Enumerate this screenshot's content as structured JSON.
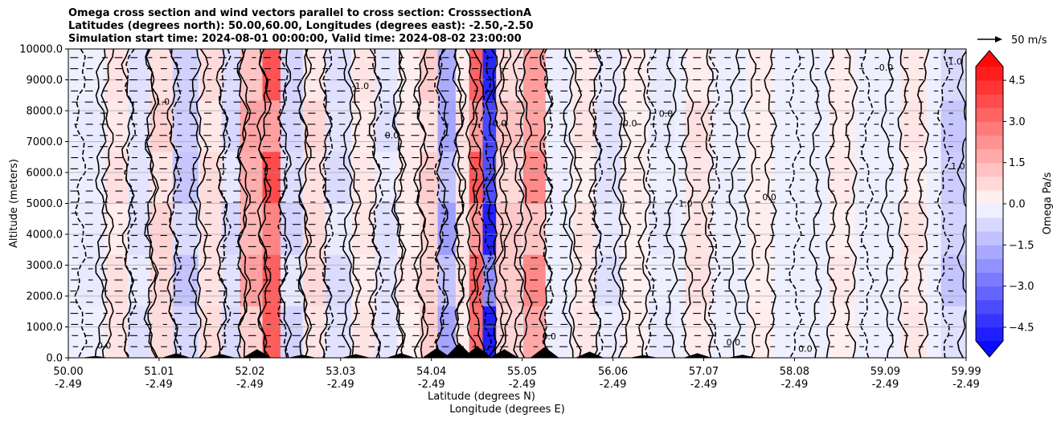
{
  "chart_data": {
    "type": "heatmap",
    "title_lines": [
      "Omega cross section and wind vectors parallel to cross section: CrosssectionA",
      "Latitudes (degrees north): 50.00,60.00, Longitudes (degrees east): -2.50,-2.50",
      "Simulation start time: 2024-08-01 00:00:00, Valid time: 2024-08-02 23:00:00"
    ],
    "ylabel": "Altitude (meters)",
    "xlabel_lines": [
      "Latitude (degrees N)",
      "Longitude (degrees E)"
    ],
    "xlim": [
      50.0,
      59.99
    ],
    "ylim": [
      0,
      10000
    ],
    "x_ticks": [
      {
        "lat": "50.00",
        "lon": "-2.49",
        "value": 50.0
      },
      {
        "lat": "51.01",
        "lon": "-2.49",
        "value": 51.01
      },
      {
        "lat": "52.02",
        "lon": "-2.49",
        "value": 52.02
      },
      {
        "lat": "53.03",
        "lon": "-2.49",
        "value": 53.03
      },
      {
        "lat": "54.04",
        "lon": "-2.49",
        "value": 54.04
      },
      {
        "lat": "55.05",
        "lon": "-2.49",
        "value": 55.05
      },
      {
        "lat": "56.06",
        "lon": "-2.49",
        "value": 56.06
      },
      {
        "lat": "57.07",
        "lon": "-2.49",
        "value": 57.07
      },
      {
        "lat": "58.08",
        "lon": "-2.49",
        "value": 58.08
      },
      {
        "lat": "59.09",
        "lon": "-2.49",
        "value": 59.09
      },
      {
        "lat": "59.99",
        "lon": "-2.49",
        "value": 59.99
      }
    ],
    "y_ticks": [
      {
        "label": "0.0",
        "value": 0
      },
      {
        "label": "1000.0",
        "value": 1000
      },
      {
        "label": "2000.0",
        "value": 2000
      },
      {
        "label": "3000.0",
        "value": 3000
      },
      {
        "label": "4000.0",
        "value": 4000
      },
      {
        "label": "5000.0",
        "value": 5000
      },
      {
        "label": "6000.0",
        "value": 6000
      },
      {
        "label": "7000.0",
        "value": 7000
      },
      {
        "label": "8000.0",
        "value": 8000
      },
      {
        "label": "9000.0",
        "value": 9000
      },
      {
        "label": "10000.0",
        "value": 10000
      }
    ],
    "grid": true,
    "colorbar": {
      "label": "Omega Pa/s",
      "min": -5.0,
      "max": 5.0,
      "extend": "both",
      "ticks": [
        {
          "label": "4.5",
          "value": 4.5
        },
        {
          "label": "3.0",
          "value": 3.0
        },
        {
          "label": "1.5",
          "value": 1.5
        },
        {
          "label": "0.0",
          "value": 0.0
        },
        {
          "label": "−1.5",
          "value": -1.5
        },
        {
          "label": "−3.0",
          "value": -3.0
        },
        {
          "label": "−4.5",
          "value": -4.5
        }
      ]
    },
    "vector_key": {
      "label": "50 m/s",
      "speed": 50
    },
    "omega_bands": [
      {
        "lat": 50.25,
        "peak": -0.4
      },
      {
        "lat": 50.55,
        "peak": 0.6
      },
      {
        "lat": 50.8,
        "peak": -0.6
      },
      {
        "lat": 51.05,
        "peak": 0.9
      },
      {
        "lat": 51.3,
        "peak": -1.2
      },
      {
        "lat": 51.6,
        "peak": 0.7
      },
      {
        "lat": 51.85,
        "peak": -0.8
      },
      {
        "lat": 52.05,
        "peak": 2.0
      },
      {
        "lat": 52.3,
        "peak": 3.8
      },
      {
        "lat": 52.5,
        "peak": -0.9
      },
      {
        "lat": 52.75,
        "peak": 0.8
      },
      {
        "lat": 53.0,
        "peak": -0.7
      },
      {
        "lat": 53.3,
        "peak": 0.5
      },
      {
        "lat": 53.55,
        "peak": -0.6
      },
      {
        "lat": 53.8,
        "peak": 0.4
      },
      {
        "lat": 54.05,
        "peak": 1.0
      },
      {
        "lat": 54.25,
        "peak": -2.0
      },
      {
        "lat": 54.45,
        "peak": 0.6
      },
      {
        "lat": 54.6,
        "peak": 3.5
      },
      {
        "lat": 54.75,
        "peak": -4.8
      },
      {
        "lat": 54.9,
        "peak": 1.2
      },
      {
        "lat": 55.2,
        "peak": 2.5
      },
      {
        "lat": 55.45,
        "peak": -0.3
      },
      {
        "lat": 55.75,
        "peak": 0.5
      },
      {
        "lat": 56.0,
        "peak": -0.6
      },
      {
        "lat": 56.3,
        "peak": 0.3
      },
      {
        "lat": 56.6,
        "peak": -0.4
      },
      {
        "lat": 57.0,
        "peak": 0.6
      },
      {
        "lat": 57.3,
        "peak": -0.3
      },
      {
        "lat": 57.7,
        "peak": 0.3
      },
      {
        "lat": 58.2,
        "peak": -0.2
      },
      {
        "lat": 58.6,
        "peak": 0.4
      },
      {
        "lat": 59.0,
        "peak": -0.2
      },
      {
        "lat": 59.4,
        "peak": 0.5
      },
      {
        "lat": 59.85,
        "peak": -1.2
      }
    ],
    "terrain": [
      {
        "lat": 50.3,
        "height": 60
      },
      {
        "lat": 51.2,
        "height": 150
      },
      {
        "lat": 51.7,
        "height": 120
      },
      {
        "lat": 52.1,
        "height": 280
      },
      {
        "lat": 52.6,
        "height": 100
      },
      {
        "lat": 53.2,
        "height": 120
      },
      {
        "lat": 53.7,
        "height": 150
      },
      {
        "lat": 54.1,
        "height": 320
      },
      {
        "lat": 54.35,
        "height": 480
      },
      {
        "lat": 54.55,
        "height": 380
      },
      {
        "lat": 54.85,
        "height": 280
      },
      {
        "lat": 55.3,
        "height": 350
      },
      {
        "lat": 55.8,
        "height": 200
      },
      {
        "lat": 56.4,
        "height": 90
      },
      {
        "lat": 57.0,
        "height": 150
      },
      {
        "lat": 57.5,
        "height": 100
      }
    ],
    "contour_labels": [
      {
        "text": "0.0",
        "lat": 55.85,
        "alt": 9900
      },
      {
        "text": "0.0",
        "lat": 56.25,
        "alt": 7500
      },
      {
        "text": "-1.0",
        "lat": 56.85,
        "alt": 4900
      },
      {
        "text": "0.0",
        "lat": 55.35,
        "alt": 600
      },
      {
        "text": "-1.0",
        "lat": 53.25,
        "alt": 8700
      },
      {
        "text": "0.0",
        "lat": 53.6,
        "alt": 7100
      },
      {
        "text": "0.0",
        "lat": 50.4,
        "alt": 300
      },
      {
        "text": "0.0",
        "lat": 58.2,
        "alt": 200
      },
      {
        "text": "0.0",
        "lat": 59.1,
        "alt": 9300
      },
      {
        "text": "-1.0",
        "lat": 59.85,
        "alt": 9500
      },
      {
        "text": "0.0",
        "lat": 57.8,
        "alt": 5100
      },
      {
        "text": "0.0",
        "lat": 57.4,
        "alt": 400
      },
      {
        "text": "1.0",
        "lat": 59.9,
        "alt": 6100
      },
      {
        "text": "0.0",
        "lat": 56.65,
        "alt": 7800
      },
      {
        "text": "1.0",
        "lat": 51.05,
        "alt": 8200
      },
      {
        "text": "0.0",
        "lat": 54.8,
        "alt": 7500
      }
    ]
  }
}
